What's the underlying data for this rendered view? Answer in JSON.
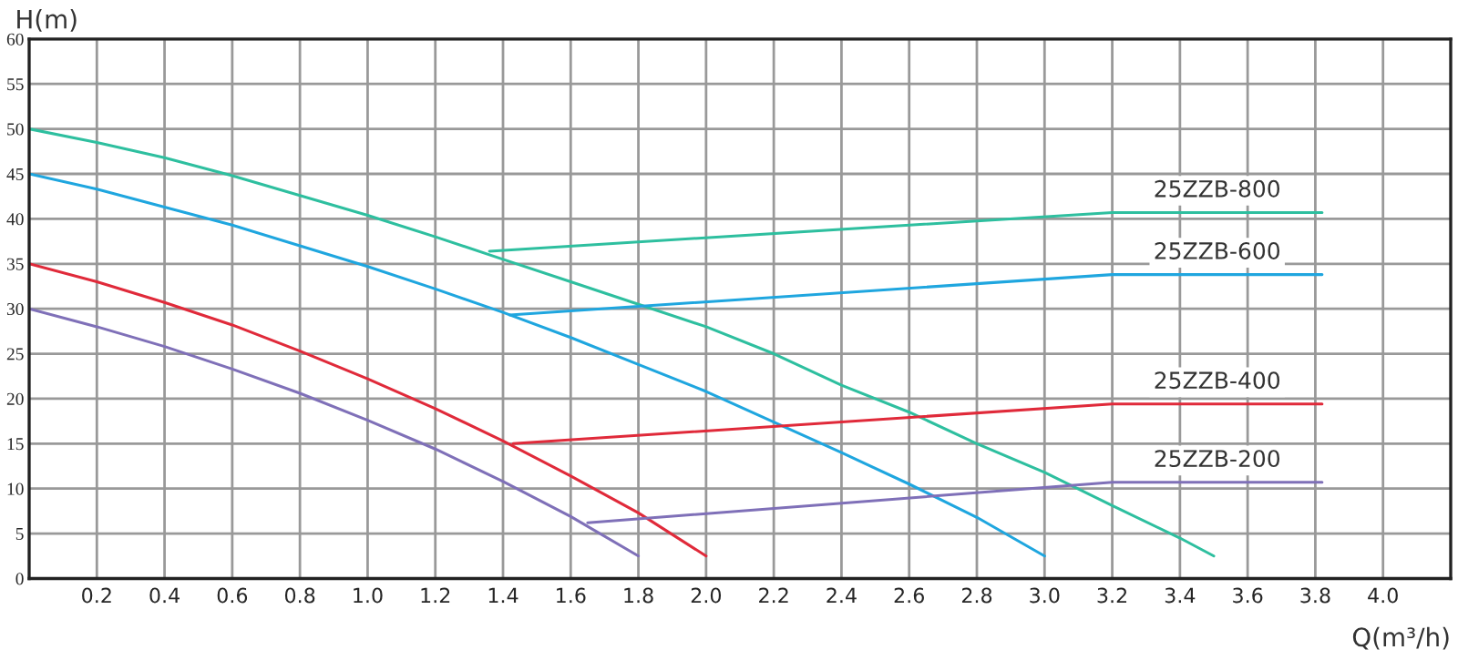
{
  "chart_data": {
    "type": "line",
    "xlabel": "Q(m³/h)",
    "ylabel": "H(m)",
    "xlim": [
      0,
      4.2
    ],
    "ylim": [
      0,
      60
    ],
    "xticks": [
      {
        "value": 0.2,
        "label": "0.2"
      },
      {
        "value": 0.4,
        "label": "0.4"
      },
      {
        "value": 0.6,
        "label": "0.6"
      },
      {
        "value": 0.8,
        "label": "0.8"
      },
      {
        "value": 1.0,
        "label": "1.0"
      },
      {
        "value": 1.2,
        "label": "1.2"
      },
      {
        "value": 1.4,
        "label": "1.4"
      },
      {
        "value": 1.6,
        "label": "1.6"
      },
      {
        "value": 1.8,
        "label": "1.8"
      },
      {
        "value": 2.0,
        "label": "2.0"
      },
      {
        "value": 2.2,
        "label": "2.2"
      },
      {
        "value": 2.4,
        "label": "2.4"
      },
      {
        "value": 2.6,
        "label": "2.6"
      },
      {
        "value": 2.8,
        "label": "2.8"
      },
      {
        "value": 3.0,
        "label": "3.0"
      },
      {
        "value": 3.2,
        "label": "3.2"
      },
      {
        "value": 3.4,
        "label": "3.4"
      },
      {
        "value": 3.6,
        "label": "3.6"
      },
      {
        "value": 3.8,
        "label": "3.8"
      },
      {
        "value": 4.0,
        "label": "4.0"
      }
    ],
    "yticks": [
      0,
      5,
      10,
      15,
      20,
      25,
      30,
      35,
      40,
      45,
      50,
      55,
      60
    ],
    "grid": true,
    "legend": false,
    "marker": "none",
    "line_style": "solid",
    "series": [
      {
        "color": "#2ebf9f",
        "x": [
          0,
          0.2,
          0.4,
          0.6,
          0.8,
          1.0,
          1.2,
          1.4,
          1.6,
          1.8,
          2.0,
          2.2,
          2.4,
          2.6,
          2.8,
          3.0,
          3.2,
          3.4,
          3.5
        ],
        "values": [
          50,
          48.5,
          46.8,
          44.8,
          42.6,
          40.4,
          38,
          35.5,
          33,
          30.5,
          28,
          25,
          21.5,
          18.5,
          15,
          11.8,
          8.1,
          4.5,
          2.5
        ]
      },
      {
        "color": "#1fa6df",
        "x": [
          0,
          0.2,
          0.4,
          0.6,
          0.8,
          1.0,
          1.2,
          1.4,
          1.6,
          1.8,
          2.0,
          2.2,
          2.4,
          2.6,
          2.8,
          3.0
        ],
        "values": [
          45,
          43.3,
          41.3,
          39.3,
          37,
          34.7,
          32.2,
          29.6,
          26.8,
          23.8,
          20.8,
          17.4,
          14,
          10.5,
          6.8,
          2.5
        ]
      },
      {
        "color": "#e02a3a",
        "x": [
          0,
          0.2,
          0.4,
          0.6,
          0.8,
          1.0,
          1.2,
          1.4,
          1.6,
          1.8,
          2.0
        ],
        "values": [
          35,
          33,
          30.7,
          28.2,
          25.3,
          22.2,
          18.9,
          15.3,
          11.4,
          7.3,
          2.5
        ]
      },
      {
        "color": "#7f70b8",
        "x": [
          0,
          0.2,
          0.4,
          0.6,
          0.8,
          1.0,
          1.2,
          1.4,
          1.6,
          1.8
        ],
        "values": [
          30,
          28,
          25.8,
          23.3,
          20.6,
          17.6,
          14.4,
          10.8,
          6.9,
          2.5
        ]
      },
      {
        "name": "25ZZB-800",
        "color": "#2ebf9f",
        "x": [
          1.36,
          3.2,
          3.82
        ],
        "values": [
          36.4,
          40.7,
          40.7
        ]
      },
      {
        "name": "25ZZB-600",
        "color": "#1fa6df",
        "x": [
          1.42,
          3.2,
          3.82
        ],
        "values": [
          29.3,
          33.8,
          33.8
        ]
      },
      {
        "name": "25ZZB-400",
        "color": "#e02a3a",
        "x": [
          1.43,
          3.2,
          3.82
        ],
        "values": [
          15,
          19.4,
          19.4
        ]
      },
      {
        "name": "25ZZB-200",
        "color": "#7f70b8",
        "x": [
          1.65,
          3.2,
          3.82
        ],
        "values": [
          6.2,
          10.7,
          10.7
        ]
      }
    ]
  }
}
